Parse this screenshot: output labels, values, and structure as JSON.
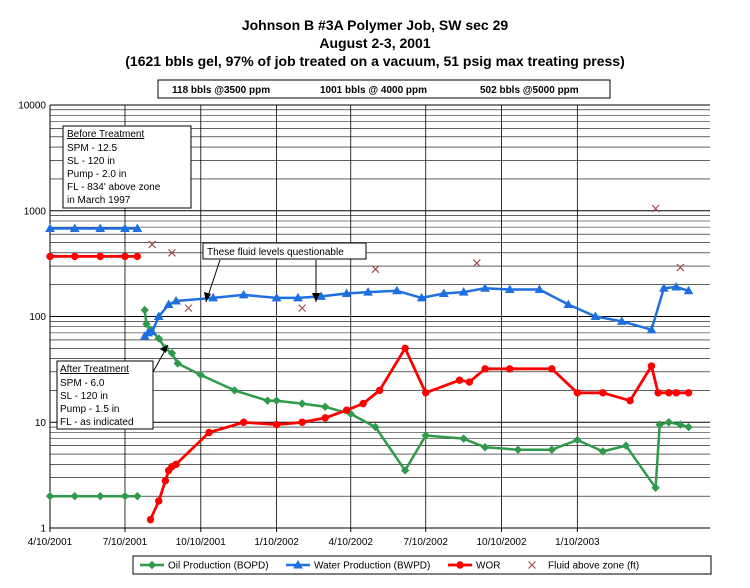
{
  "title": {
    "line1": "Johnson B #3A Polymer Job, SW sec 29",
    "line2": "August 2-3, 2001",
    "line3": "(1621 bbls gel, 97% of job treated on a vacuum, 51 psig max treating press)"
  },
  "stages": [
    "118 bbls @3500 ppm",
    "1001 bbls @ 4000 ppm",
    "502 bbls @5000 ppm"
  ],
  "before_box": {
    "heading": "Before Treatment",
    "lines": [
      "SPM -    12.5",
      "SL -      120 in",
      "Pump -   2.0 in",
      "FL -  834' above zone",
      "      in March 1997"
    ]
  },
  "after_box": {
    "heading": "After Treatment",
    "lines": [
      "SPM -   6.0",
      "SL -     120 in",
      "Pump - 1.5 in",
      "FL -   as indicated"
    ]
  },
  "annotation": "These fluid levels questionable",
  "colors": {
    "oil": "#2e9a4a",
    "water": "#1f6fe0",
    "wor": "#ff0000",
    "fluid": "#a05050"
  },
  "chart_data": {
    "type": "line",
    "y_scale": "log",
    "ylim": [
      1,
      10000
    ],
    "xlim": [
      "2001-04-10",
      "2003-06-20"
    ],
    "y_ticks": [
      "1",
      "10",
      "100",
      "1000",
      "10000"
    ],
    "x_ticks": [
      {
        "date": "2001-04-10",
        "label": "4/10/2001"
      },
      {
        "date": "2001-07-10",
        "label": "7/10/2001"
      },
      {
        "date": "2001-10-10",
        "label": "10/10/2001"
      },
      {
        "date": "2002-01-10",
        "label": "1/10/2002"
      },
      {
        "date": "2002-04-10",
        "label": "4/10/2002"
      },
      {
        "date": "2002-07-10",
        "label": "7/10/2002"
      },
      {
        "date": "2002-10-10",
        "label": "10/10/2002"
      },
      {
        "date": "2003-01-10",
        "label": "1/10/2003"
      }
    ],
    "grid": true,
    "legend_position": "bottom",
    "series": [
      {
        "name": "Oil Production (BOPD)",
        "marker": "diamond",
        "segments": [
          [
            [
              "2001-04-10",
              2
            ],
            [
              "2001-05-10",
              2
            ],
            [
              "2001-06-10",
              2
            ],
            [
              "2001-07-10",
              2
            ],
            [
              "2001-07-25",
              2
            ]
          ],
          [
            [
              "2001-08-03",
              115
            ],
            [
              "2001-08-05",
              85
            ],
            [
              "2001-08-10",
              75
            ],
            [
              "2001-08-20",
              62
            ],
            [
              "2001-08-28",
              50
            ],
            [
              "2001-09-05",
              45
            ],
            [
              "2001-09-12",
              36
            ],
            [
              "2001-10-10",
              28
            ],
            [
              "2001-11-20",
              20
            ],
            [
              "2001-12-30",
              16
            ],
            [
              "2002-01-10",
              16
            ],
            [
              "2002-02-10",
              15
            ],
            [
              "2002-03-10",
              14
            ],
            [
              "2002-04-10",
              12
            ],
            [
              "2002-05-10",
              9
            ],
            [
              "2002-06-15",
              3.5
            ],
            [
              "2002-07-10",
              7.5
            ],
            [
              "2002-08-25",
              7
            ],
            [
              "2002-09-20",
              5.8
            ],
            [
              "2002-10-30",
              5.5
            ],
            [
              "2002-12-10",
              5.5
            ],
            [
              "2003-01-10",
              6.8
            ],
            [
              "2003-02-10",
              5.3
            ],
            [
              "2003-03-10",
              6
            ],
            [
              "2003-04-15",
              2.4
            ],
            [
              "2003-04-20",
              9.5
            ],
            [
              "2003-05-01",
              10
            ],
            [
              "2003-05-15",
              9.5
            ],
            [
              "2003-05-25",
              9
            ]
          ]
        ]
      },
      {
        "name": "Water Production (BWPD)",
        "marker": "triangle",
        "segments": [
          [
            [
              "2001-04-10",
              680
            ],
            [
              "2001-05-10",
              680
            ],
            [
              "2001-06-10",
              680
            ],
            [
              "2001-07-10",
              680
            ],
            [
              "2001-07-25",
              680
            ]
          ],
          [
            [
              "2001-08-03",
              65
            ],
            [
              "2001-08-07",
              70
            ],
            [
              "2001-08-12",
              72
            ],
            [
              "2001-08-20",
              100
            ],
            [
              "2001-09-01",
              130
            ],
            [
              "2001-09-10",
              140
            ],
            [
              "2001-10-25",
              150
            ],
            [
              "2001-12-01",
              160
            ],
            [
              "2002-01-10",
              150
            ],
            [
              "2002-02-05",
              150
            ],
            [
              "2002-03-05",
              155
            ],
            [
              "2002-04-05",
              165
            ],
            [
              "2002-05-01",
              170
            ],
            [
              "2002-06-05",
              175
            ],
            [
              "2002-07-05",
              150
            ],
            [
              "2002-08-01",
              165
            ],
            [
              "2002-08-25",
              170
            ],
            [
              "2002-09-20",
              185
            ],
            [
              "2002-10-20",
              180
            ],
            [
              "2002-11-25",
              180
            ],
            [
              "2002-12-30",
              130
            ],
            [
              "2003-02-01",
              100
            ],
            [
              "2003-03-05",
              90
            ],
            [
              "2003-04-10",
              75
            ],
            [
              "2003-04-25",
              185
            ],
            [
              "2003-05-10",
              190
            ],
            [
              "2003-05-25",
              175
            ]
          ]
        ]
      },
      {
        "name": "WOR",
        "marker": "circle",
        "segments": [
          [
            [
              "2001-04-10",
              370
            ],
            [
              "2001-05-10",
              370
            ],
            [
              "2001-06-10",
              370
            ],
            [
              "2001-07-10",
              370
            ],
            [
              "2001-07-25",
              370
            ]
          ],
          [
            [
              "2001-08-10",
              1.2
            ],
            [
              "2001-08-20",
              1.8
            ],
            [
              "2001-08-28",
              2.8
            ],
            [
              "2001-09-01",
              3.5
            ],
            [
              "2001-09-05",
              3.8
            ],
            [
              "2001-09-10",
              4
            ],
            [
              "2001-10-20",
              8
            ],
            [
              "2001-12-01",
              10
            ],
            [
              "2002-01-10",
              9.5
            ],
            [
              "2002-02-10",
              10
            ],
            [
              "2002-03-10",
              11
            ],
            [
              "2002-04-05",
              13
            ],
            [
              "2002-04-25",
              15
            ],
            [
              "2002-05-15",
              20
            ],
            [
              "2002-06-15",
              50
            ],
            [
              "2002-07-10",
              19
            ],
            [
              "2002-08-20",
              25
            ],
            [
              "2002-09-01",
              24
            ],
            [
              "2002-09-20",
              32
            ],
            [
              "2002-10-20",
              32
            ],
            [
              "2002-12-10",
              32
            ],
            [
              "2003-01-10",
              19
            ],
            [
              "2003-02-10",
              19
            ],
            [
              "2003-03-15",
              16
            ],
            [
              "2003-04-10",
              34
            ],
            [
              "2003-04-18",
              19
            ],
            [
              "2003-05-01",
              19
            ],
            [
              "2003-05-10",
              19
            ],
            [
              "2003-05-25",
              19
            ]
          ]
        ]
      },
      {
        "name": "Fluid above zone (ft)",
        "marker": "x",
        "points": [
          [
            "2001-08-12",
            480
          ],
          [
            "2001-09-05",
            400
          ],
          [
            "2001-09-25",
            120
          ],
          [
            "2002-02-10",
            120
          ],
          [
            "2002-05-10",
            280
          ],
          [
            "2002-09-10",
            320
          ],
          [
            "2003-04-15",
            1050
          ],
          [
            "2003-05-15",
            290
          ]
        ]
      }
    ]
  }
}
